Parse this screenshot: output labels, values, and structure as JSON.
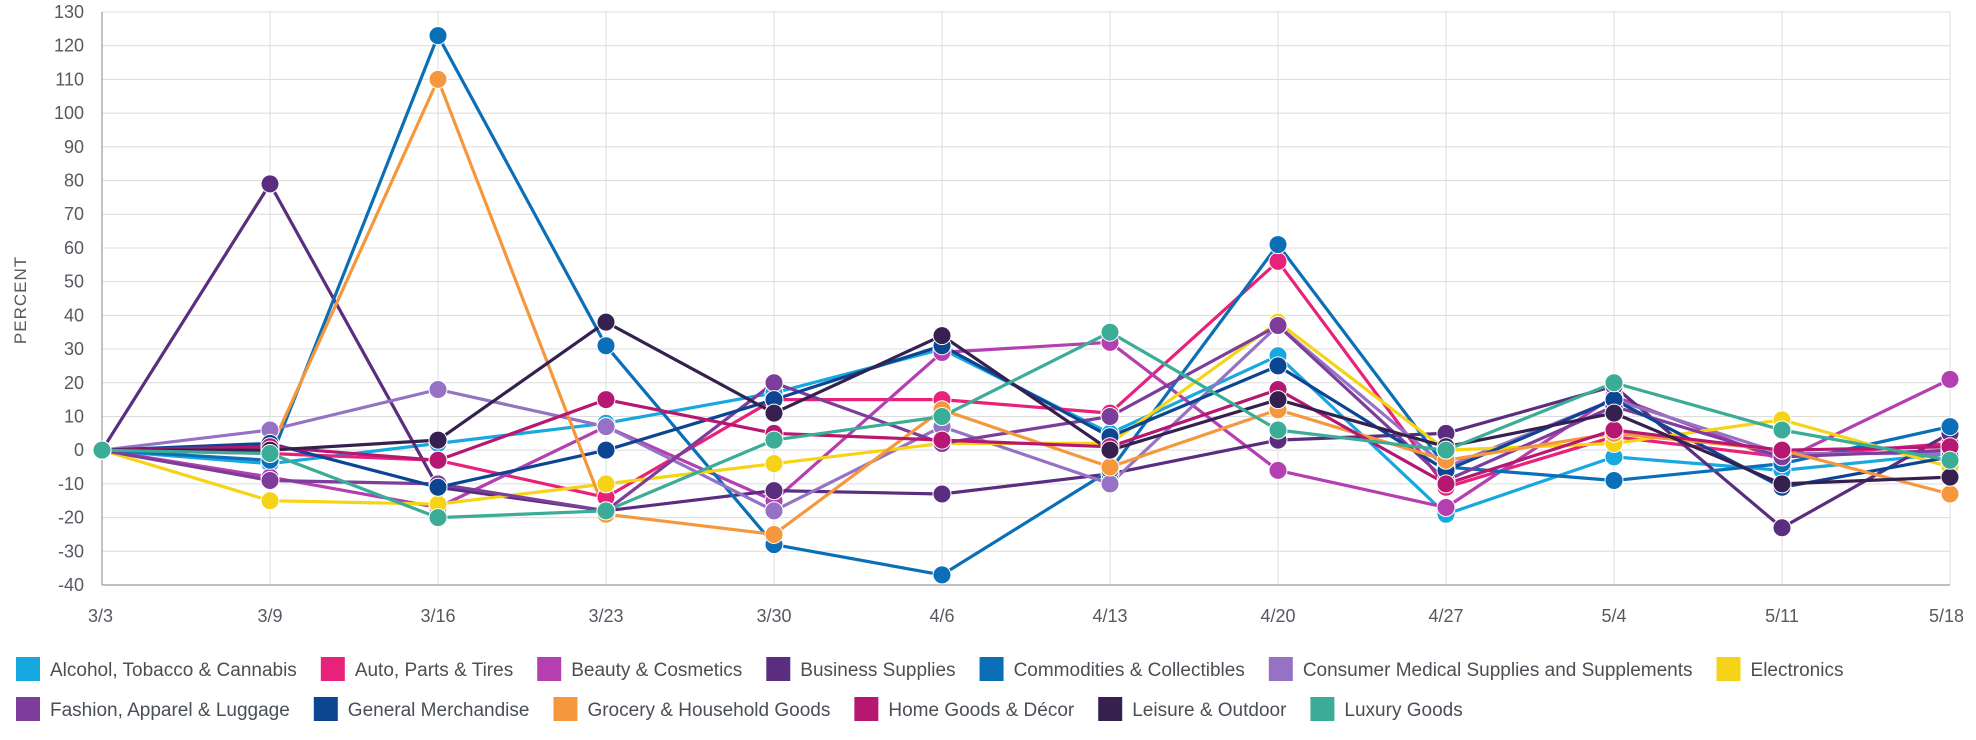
{
  "chart_data": {
    "type": "line",
    "title": "",
    "xlabel": "",
    "ylabel": "PERCENT",
    "ylim": [
      -40,
      130
    ],
    "yticks": [
      130,
      120,
      110,
      100,
      90,
      80,
      70,
      60,
      50,
      40,
      30,
      20,
      10,
      0,
      -10,
      -20,
      -30,
      -40
    ],
    "categories": [
      "3/3",
      "3/9",
      "3/16",
      "3/23",
      "3/30",
      "4/6",
      "4/13",
      "4/20",
      "4/27",
      "5/4",
      "5/11",
      "5/18"
    ],
    "grid": true,
    "legend_position": "bottom",
    "series": [
      {
        "name": "Alcohol, Tobacco & Cannabis",
        "color": "#17a8e0",
        "values": [
          0,
          -4,
          2,
          8,
          17,
          30,
          5,
          28,
          -19,
          -2,
          -6,
          -1
        ]
      },
      {
        "name": "Auto, Parts & Tires",
        "color": "#e8217a",
        "values": [
          0,
          -1,
          -3,
          -14,
          15,
          15,
          11,
          56,
          -11,
          4,
          -2,
          2
        ]
      },
      {
        "name": "Beauty & Cosmetics",
        "color": "#b33fb0",
        "values": [
          0,
          -8,
          -17,
          7,
          -15,
          29,
          32,
          -6,
          -17,
          16,
          -3,
          21
        ]
      },
      {
        "name": "Business Supplies",
        "color": "#5b2d7e",
        "values": [
          0,
          79,
          -11,
          -18,
          -12,
          -13,
          -7,
          3,
          5,
          19,
          -23,
          5
        ]
      },
      {
        "name": "Commodities & Collectibles",
        "color": "#0b6fb7",
        "values": [
          0,
          -3,
          123,
          31,
          -28,
          -37,
          -6,
          61,
          -5,
          -9,
          -4,
          7
        ]
      },
      {
        "name": "Consumer Medical Supplies and Supplements",
        "color": "#9572c4",
        "values": [
          0,
          6,
          18,
          7,
          -18,
          7,
          -10,
          37,
          -5,
          15,
          -1,
          -1
        ]
      },
      {
        "name": "Electronics",
        "color": "#f5d316",
        "values": [
          0,
          -15,
          -16,
          -10,
          -4,
          2,
          2,
          38,
          0,
          2,
          9,
          -5
        ]
      },
      {
        "name": "Fashion, Apparel & Luggage",
        "color": "#7d3e9b",
        "values": [
          0,
          -9,
          -10,
          -18,
          20,
          2,
          10,
          37,
          -9,
          13,
          -2,
          0
        ]
      },
      {
        "name": "General Merchandise",
        "color": "#0c4591",
        "values": [
          0,
          2,
          -11,
          0,
          15,
          31,
          4,
          25,
          -6,
          15,
          -11,
          -2
        ]
      },
      {
        "name": "Grocery & Household Goods",
        "color": "#f5983d",
        "values": [
          0,
          0,
          110,
          -19,
          -25,
          12,
          -5,
          12,
          -3,
          5,
          0,
          -13
        ]
      },
      {
        "name": "Home Goods & Décor",
        "color": "#b61770",
        "values": [
          0,
          1,
          -3,
          15,
          5,
          3,
          1,
          18,
          -10,
          6,
          0,
          1
        ]
      },
      {
        "name": "Leisure & Outdoor",
        "color": "#35204f",
        "values": [
          0,
          0,
          3,
          38,
          11,
          34,
          0,
          15,
          1,
          11,
          -10,
          -8
        ]
      },
      {
        "name": "Luxury Goods",
        "color": "#3bac96",
        "values": [
          0,
          -1,
          -20,
          -18,
          3,
          10,
          35,
          6,
          0,
          20,
          6,
          -3
        ]
      }
    ]
  }
}
